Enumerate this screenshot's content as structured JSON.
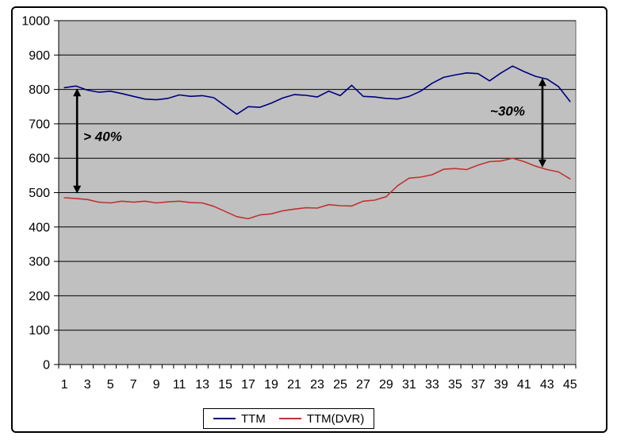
{
  "chart_data": {
    "type": "line",
    "title": "",
    "xlabel": "",
    "ylabel": "",
    "x": [
      1,
      2,
      3,
      4,
      5,
      6,
      7,
      8,
      9,
      10,
      11,
      12,
      13,
      14,
      15,
      16,
      17,
      18,
      19,
      20,
      21,
      22,
      23,
      24,
      25,
      26,
      27,
      28,
      29,
      30,
      31,
      32,
      33,
      34,
      35,
      36,
      37,
      38,
      39,
      40,
      41,
      42,
      43,
      44,
      45
    ],
    "x_tick_labels": [
      "1",
      "3",
      "5",
      "7",
      "9",
      "11",
      "13",
      "15",
      "17",
      "19",
      "21",
      "23",
      "25",
      "27",
      "29",
      "31",
      "33",
      "35",
      "37",
      "39",
      "41",
      "43",
      "45"
    ],
    "y_tick_labels": [
      "0",
      "100",
      "200",
      "300",
      "400",
      "500",
      "600",
      "700",
      "800",
      "900",
      "1000"
    ],
    "ylim": [
      0,
      1000
    ],
    "ytick_step": 100,
    "grid": true,
    "plot_bg": "#C0C0C0",
    "grid_color": "#000000",
    "legend_position": "bottom",
    "series": [
      {
        "name": "TTM",
        "color": "#000080",
        "values": [
          805,
          810,
          798,
          792,
          795,
          788,
          780,
          772,
          770,
          774,
          784,
          780,
          782,
          776,
          752,
          728,
          750,
          748,
          760,
          775,
          785,
          783,
          778,
          795,
          782,
          812,
          780,
          778,
          774,
          772,
          780,
          795,
          818,
          835,
          842,
          848,
          846,
          825,
          848,
          868,
          852,
          838,
          830,
          808,
          765
        ]
      },
      {
        "name": "TTM(DVR)",
        "color": "#C03333",
        "values": [
          485,
          483,
          480,
          472,
          470,
          475,
          472,
          475,
          470,
          473,
          475,
          471,
          470,
          460,
          445,
          430,
          424,
          435,
          438,
          447,
          452,
          456,
          455,
          465,
          462,
          461,
          475,
          478,
          488,
          520,
          542,
          545,
          552,
          568,
          570,
          567,
          580,
          590,
          592,
          600,
          590,
          577,
          567,
          560,
          540
        ]
      }
    ],
    "annotations": [
      {
        "type": "double-arrow",
        "x_pt": 2.1,
        "from": 497,
        "to": 803,
        "label": "> 40%",
        "label_x_pt": 2.65,
        "label_value": 662
      },
      {
        "type": "double-arrow",
        "x_pt": 42.6,
        "from": 573,
        "to": 833,
        "label": "~30%",
        "label_x_pt": 38.05,
        "label_value": 735
      }
    ]
  }
}
